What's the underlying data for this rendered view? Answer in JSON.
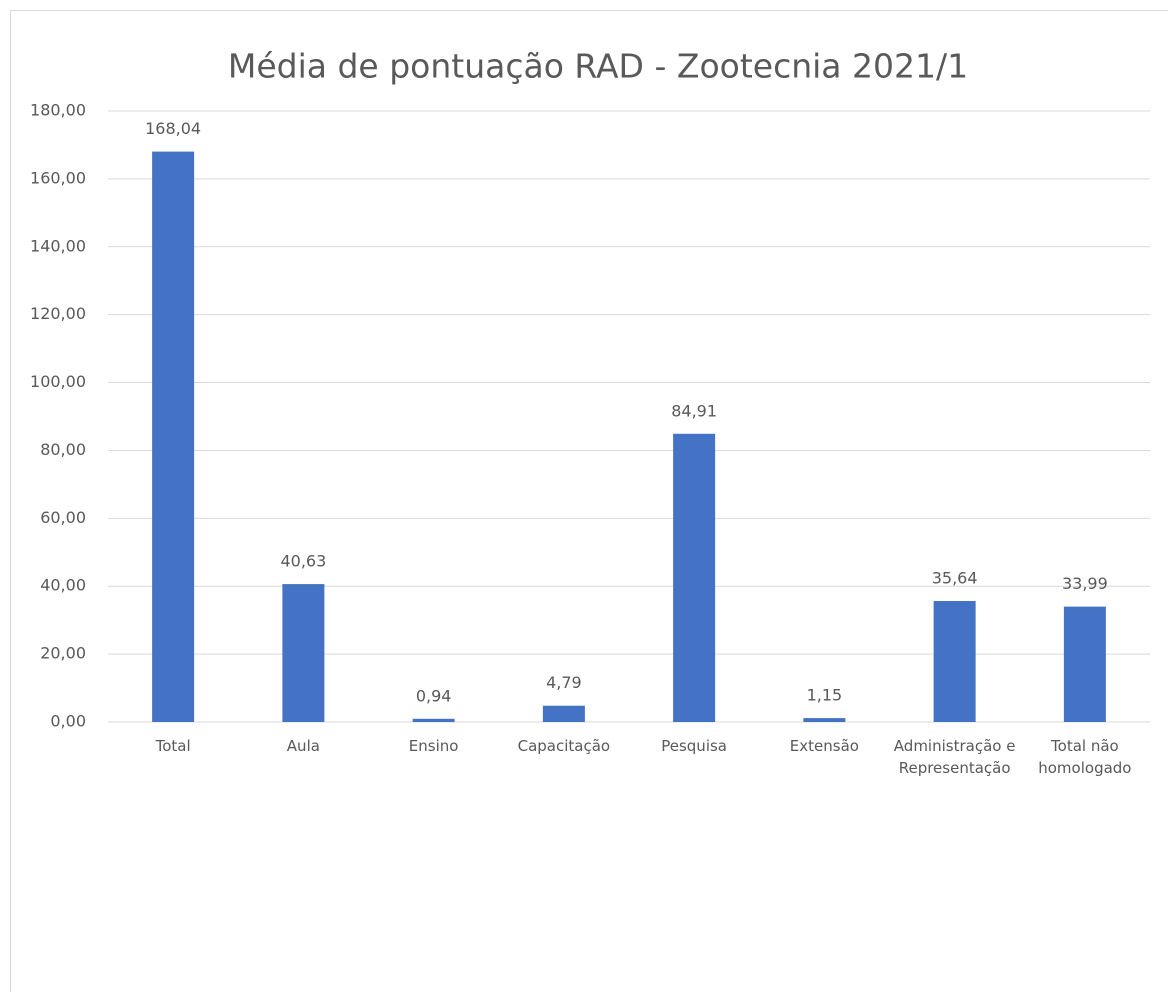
{
  "chart_data": {
    "type": "bar",
    "title": "Média de pontuação RAD - Zootecnia 2021/1",
    "categories": [
      "Total",
      "Aula",
      "Ensino",
      "Capacitação",
      "Pesquisa",
      "Extensão",
      "Administração e Representação",
      "Total não homologado"
    ],
    "values": [
      168.04,
      40.63,
      0.94,
      4.79,
      84.91,
      1.15,
      35.64,
      33.99
    ],
    "value_labels": [
      "168,04",
      "40,63",
      "0,94",
      "4,79",
      "84,91",
      "1,15",
      "35,64",
      "33,99"
    ],
    "color": "#4472c4",
    "ylim": [
      0,
      180
    ],
    "yticks": [
      {
        "value": 0,
        "label": "0,00"
      },
      {
        "value": 20,
        "label": "20,00"
      },
      {
        "value": 40,
        "label": "40,00"
      },
      {
        "value": 60,
        "label": "60,00"
      },
      {
        "value": 80,
        "label": "80,00"
      },
      {
        "value": 100,
        "label": "100,00"
      },
      {
        "value": 120,
        "label": "120,00"
      },
      {
        "value": 140,
        "label": "140,00"
      },
      {
        "value": 160,
        "label": "160,00"
      },
      {
        "value": 180,
        "label": "180,00"
      }
    ],
    "grid": true
  }
}
